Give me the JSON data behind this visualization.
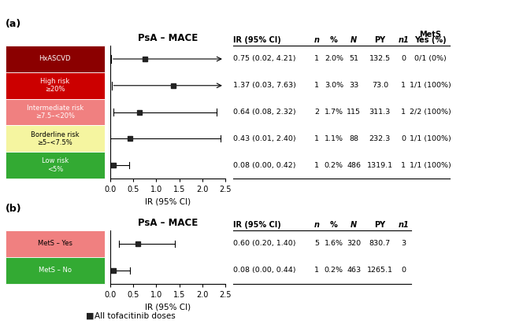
{
  "panel_a": {
    "title": "PsA – MACE",
    "categories": [
      "HxASCVD",
      "High risk\n≥20%",
      "Intermediate risk\n≥7.5–<20%",
      "Borderline risk\n≥5–<7.5%",
      "Low risk\n<5%"
    ],
    "colors": [
      "#8b0000",
      "#cc0000",
      "#f08080",
      "#f5f5a0",
      "#33aa33"
    ],
    "text_colors": [
      "white",
      "white",
      "white",
      "black",
      "white"
    ],
    "point": [
      0.75,
      1.37,
      0.64,
      0.43,
      0.08
    ],
    "ci_low": [
      0.02,
      0.03,
      0.08,
      0.01,
      0.0
    ],
    "ci_high": [
      4.21,
      7.63,
      2.32,
      2.4,
      0.42
    ],
    "arrow": [
      true,
      true,
      false,
      false,
      false
    ],
    "xlim": [
      0,
      2.5
    ],
    "xticks": [
      0.0,
      0.5,
      1.0,
      1.5,
      2.0,
      2.5
    ],
    "xlabel": "IR (95% CI)",
    "col_headers": [
      "IR (95% CI)",
      "n",
      "%",
      "N",
      "PY",
      "n1",
      "MetS\nYes (%)"
    ],
    "table_data": [
      [
        "0.75 (0.02, 4.21)",
        "1",
        "2.0%",
        "51",
        "132.5",
        "0",
        "0/1 (0%)"
      ],
      [
        "1.37 (0.03, 7.63)",
        "1",
        "3.0%",
        "33",
        "73.0",
        "1",
        "1/1 (100%)"
      ],
      [
        "0.64 (0.08, 2.32)",
        "2",
        "1.7%",
        "115",
        "311.3",
        "1",
        "2/2 (100%)"
      ],
      [
        "0.43 (0.01, 2.40)",
        "1",
        "1.1%",
        "88",
        "232.3",
        "0",
        "1/1 (100%)"
      ],
      [
        "0.08 (0.00, 0.42)",
        "1",
        "0.2%",
        "486",
        "1319.1",
        "1",
        "1/1 (100%)"
      ]
    ]
  },
  "panel_b": {
    "title": "PsA – MACE",
    "categories": [
      "MetS – Yes",
      "MetS – No"
    ],
    "colors": [
      "#f08080",
      "#33aa33"
    ],
    "text_colors": [
      "black",
      "white"
    ],
    "point": [
      0.6,
      0.08
    ],
    "ci_low": [
      0.2,
      0.0
    ],
    "ci_high": [
      1.4,
      0.44
    ],
    "arrow": [
      false,
      false
    ],
    "xlim": [
      0,
      2.5
    ],
    "xticks": [
      0.0,
      0.5,
      1.0,
      1.5,
      2.0,
      2.5
    ],
    "xlabel": "IR (95% CI)",
    "col_headers": [
      "IR (95% CI)",
      "n",
      "%",
      "N",
      "PY",
      "n1"
    ],
    "table_data": [
      [
        "0.60 (0.20, 1.40)",
        "5",
        "1.6%",
        "320",
        "830.7",
        "3"
      ],
      [
        "0.08 (0.00, 0.44)",
        "1",
        "0.2%",
        "463",
        "1265.1",
        "0"
      ]
    ]
  },
  "legend_label": "All tofacitinib doses",
  "background_color": "#ffffff"
}
